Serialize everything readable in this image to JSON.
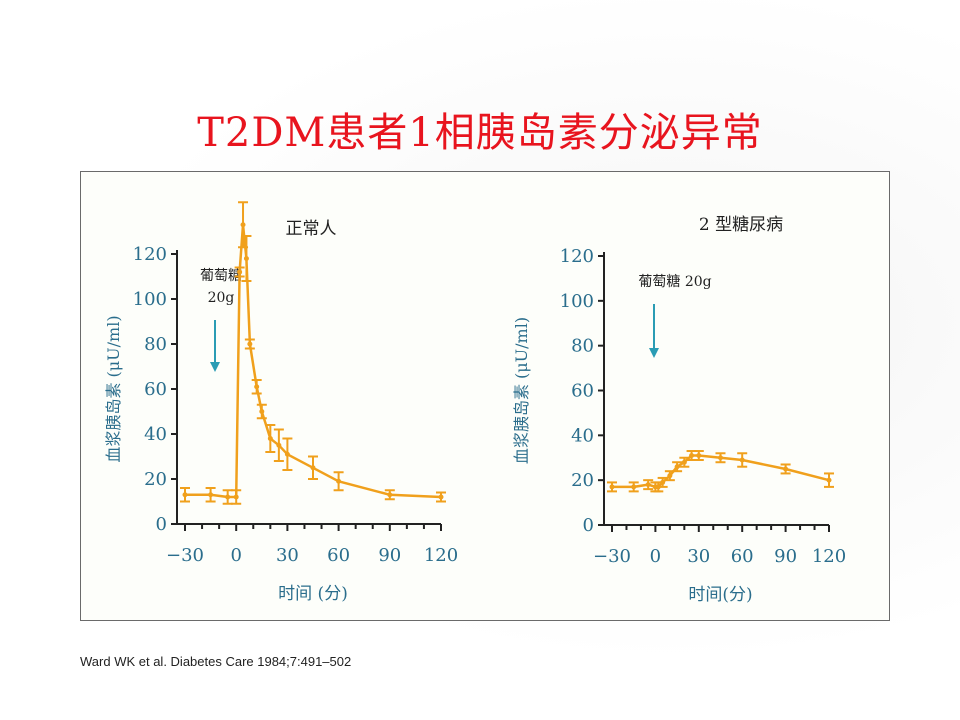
{
  "title": "T2DM患者1相胰岛素分泌异常",
  "citation": "Ward WK et al. Diabetes Care 1984;7:491–502",
  "colors": {
    "title": "#e8141e",
    "line": "#f0a01c",
    "axis_text": "#2a6d8c",
    "arrow": "#2a9cb4",
    "frame": "#6a6a6a"
  },
  "chart_data": [
    {
      "type": "line",
      "title": "正常人",
      "xlabel": "时间 (分)",
      "ylabel": "血浆胰岛素 (μU/ml)",
      "xlim": [
        -30,
        120
      ],
      "ylim": [
        0,
        120
      ],
      "x_ticks": [
        -30,
        0,
        30,
        60,
        90,
        120
      ],
      "y_ticks": [
        0,
        20,
        40,
        60,
        80,
        100,
        120
      ],
      "annotation": {
        "label_line1": "葡萄糖",
        "label_line2": "20g"
      },
      "series": [
        {
          "x": [
            -30,
            -15,
            -5,
            0,
            2,
            4,
            6,
            8,
            12,
            15,
            20,
            25,
            30,
            45,
            60,
            90,
            120
          ],
          "y": [
            13,
            13,
            12,
            12,
            112,
            133,
            118,
            80,
            61,
            50,
            38,
            35,
            31,
            25,
            19,
            13,
            12
          ],
          "err": [
            3,
            3,
            3,
            3,
            2,
            10,
            10,
            2,
            3,
            3,
            6,
            7,
            7,
            5,
            4,
            2,
            2
          ]
        }
      ]
    },
    {
      "type": "line",
      "title": "2 型糖尿病",
      "xlabel": "时间(分)",
      "ylabel": "血浆胰岛素 (μU/ml)",
      "xlim": [
        -30,
        120
      ],
      "ylim": [
        0,
        120
      ],
      "x_ticks": [
        -30,
        0,
        30,
        60,
        90,
        120
      ],
      "y_ticks": [
        0,
        20,
        40,
        60,
        80,
        100,
        120
      ],
      "annotation": {
        "label_line1": "葡萄糖 20g",
        "label_line2": ""
      },
      "series": [
        {
          "x": [
            -30,
            -15,
            -5,
            0,
            2,
            5,
            10,
            15,
            20,
            25,
            30,
            45,
            60,
            90,
            120
          ],
          "y": [
            17,
            17,
            18,
            17,
            17,
            19,
            22,
            26,
            28,
            31,
            31,
            30,
            29,
            25,
            20
          ],
          "err": [
            2,
            2,
            2,
            2,
            2,
            2,
            2,
            2,
            2,
            2,
            2,
            2,
            3,
            2,
            3
          ]
        }
      ]
    }
  ]
}
